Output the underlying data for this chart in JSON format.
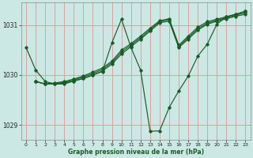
{
  "xlabel": "Graphe pression niveau de la mer (hPa)",
  "bg_color": "#cce8e4",
  "grid_color": "#dca0a0",
  "line_color": "#1a5c2a",
  "xlim": [
    -0.5,
    23.5
  ],
  "ylim": [
    1028.7,
    1031.45
  ],
  "yticks": [
    1029,
    1030,
    1031
  ],
  "xticks": [
    0,
    1,
    2,
    3,
    4,
    5,
    6,
    7,
    8,
    9,
    10,
    11,
    12,
    13,
    14,
    15,
    16,
    17,
    18,
    19,
    20,
    21,
    22,
    23
  ],
  "series": [
    {
      "x": [
        0,
        1,
        2,
        3,
        4,
        5,
        6,
        7,
        8,
        9,
        10,
        11,
        12,
        13,
        14,
        15,
        16,
        17,
        18,
        19,
        20,
        21,
        22,
        23
      ],
      "y": [
        1030.55,
        1030.1,
        1029.87,
        1029.82,
        1029.82,
        1029.88,
        1029.93,
        1030.0,
        1030.07,
        1030.65,
        1031.12,
        1030.55,
        1030.1,
        1028.87,
        1028.88,
        1029.35,
        1029.68,
        1029.98,
        1030.38,
        1030.62,
        1031.02,
        1031.17,
        1031.22,
        1031.28
      ]
    },
    {
      "x": [
        1,
        2,
        3,
        4,
        5,
        6,
        7,
        8,
        9,
        10,
        11,
        12,
        13,
        14,
        15,
        16,
        17,
        18,
        19,
        20,
        21,
        22,
        23
      ],
      "y": [
        1029.87,
        1029.82,
        1029.82,
        1029.84,
        1029.88,
        1029.93,
        1030.0,
        1030.08,
        1030.22,
        1030.42,
        1030.57,
        1030.72,
        1030.88,
        1031.05,
        1031.08,
        1030.55,
        1030.72,
        1030.9,
        1031.02,
        1031.08,
        1031.13,
        1031.18,
        1031.22
      ]
    },
    {
      "x": [
        1,
        2,
        3,
        4,
        5,
        6,
        7,
        8,
        9,
        10,
        11,
        12,
        13,
        14,
        15,
        16,
        17,
        18,
        19,
        20,
        21,
        22,
        23
      ],
      "y": [
        1029.87,
        1029.82,
        1029.83,
        1029.85,
        1029.9,
        1029.96,
        1030.03,
        1030.11,
        1030.25,
        1030.46,
        1030.6,
        1030.75,
        1030.91,
        1031.07,
        1031.11,
        1030.57,
        1030.75,
        1030.93,
        1031.04,
        1031.1,
        1031.15,
        1031.2,
        1031.25
      ]
    },
    {
      "x": [
        1,
        2,
        3,
        4,
        5,
        6,
        7,
        8,
        9,
        10,
        11,
        12,
        13,
        14,
        15,
        16,
        17,
        18,
        19,
        20,
        21,
        22,
        23
      ],
      "y": [
        1029.87,
        1029.82,
        1029.84,
        1029.87,
        1029.92,
        1029.98,
        1030.06,
        1030.14,
        1030.28,
        1030.5,
        1030.63,
        1030.78,
        1030.94,
        1031.09,
        1031.13,
        1030.6,
        1030.78,
        1030.96,
        1031.07,
        1031.12,
        1031.17,
        1031.22,
        1031.28
      ]
    }
  ]
}
